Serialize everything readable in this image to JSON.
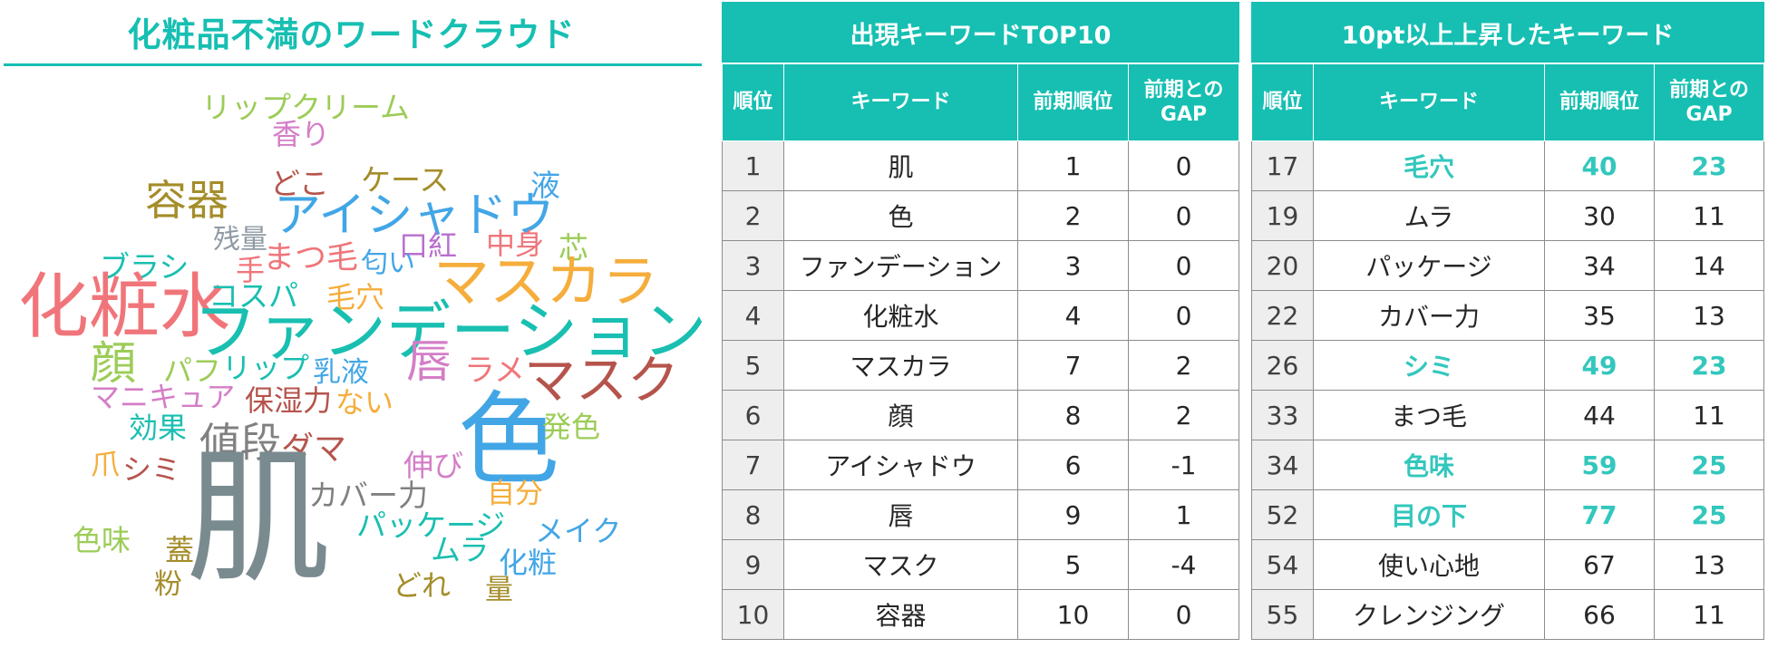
{
  "colors": {
    "accent": "#16bfb2",
    "highlight_text": "#33c7bd",
    "rank_cell_bg": "#eeeeee"
  },
  "word_cloud": {
    "title": "化粧品不満のワードクラウド",
    "words": [
      {
        "text": "リップクリーム",
        "color": "#9ccc57"
      },
      {
        "text": "香り",
        "color": "#d47ec7"
      },
      {
        "text": "容器",
        "color": "#a48d2a"
      },
      {
        "text": "どこ",
        "color": "#b5544c"
      },
      {
        "text": "ケース",
        "color": "#a48d2a"
      },
      {
        "text": "液",
        "color": "#42a6e6"
      },
      {
        "text": "アイシャドウ",
        "color": "#42a6e6"
      },
      {
        "text": "残量",
        "color": "#8f9aa4"
      },
      {
        "text": "口紅",
        "color": "#b86fcf"
      },
      {
        "text": "中身",
        "color": "#f0757a"
      },
      {
        "text": "芯",
        "color": "#9ccc57"
      },
      {
        "text": "ブラシ",
        "color": "#19bfb1"
      },
      {
        "text": "手",
        "color": "#f0757a"
      },
      {
        "text": "まつ毛",
        "color": "#f0757a"
      },
      {
        "text": "匂い",
        "color": "#42a6e6"
      },
      {
        "text": "マスカラ",
        "color": "#f5ad3b"
      },
      {
        "text": "化粧水",
        "color": "#f0757a"
      },
      {
        "text": "コスパ",
        "color": "#19bfb1"
      },
      {
        "text": "毛穴",
        "color": "#f5ad3b"
      },
      {
        "text": "ファンデーション",
        "color": "#19bfb1"
      },
      {
        "text": "顔",
        "color": "#9ccc57"
      },
      {
        "text": "パフ",
        "color": "#9ccc57"
      },
      {
        "text": "リップ",
        "color": "#19bfb1"
      },
      {
        "text": "乳液",
        "color": "#42a6e6"
      },
      {
        "text": "唇",
        "color": "#d47ec7"
      },
      {
        "text": "ラメ",
        "color": "#f0757a"
      },
      {
        "text": "マスク",
        "color": "#b5544c"
      },
      {
        "text": "マニキュア",
        "color": "#d47ec7"
      },
      {
        "text": "保湿力",
        "color": "#b5544c"
      },
      {
        "text": "ない",
        "color": "#f5ad3b"
      },
      {
        "text": "効果",
        "color": "#19bfb1"
      },
      {
        "text": "値段",
        "color": "#808080"
      },
      {
        "text": "ダマ",
        "color": "#b5544c"
      },
      {
        "text": "色",
        "color": "#42a6e6"
      },
      {
        "text": "発色",
        "color": "#9ccc57"
      },
      {
        "text": "爪",
        "color": "#f5ad3b"
      },
      {
        "text": "シミ",
        "color": "#b5544c"
      },
      {
        "text": "伸び",
        "color": "#d47ec7"
      },
      {
        "text": "肌",
        "color": "#7a8b8f"
      },
      {
        "text": "カバー力",
        "color": "#808080"
      },
      {
        "text": "自分",
        "color": "#f5ad3b"
      },
      {
        "text": "パッケージ",
        "color": "#19bfb1"
      },
      {
        "text": "色味",
        "color": "#9ccc57"
      },
      {
        "text": "蓋",
        "color": "#a48d2a"
      },
      {
        "text": "メイク",
        "color": "#42a6e6"
      },
      {
        "text": "ムラ",
        "color": "#19bfb1"
      },
      {
        "text": "化粧",
        "color": "#42a6e6"
      },
      {
        "text": "粉",
        "color": "#a48d2a"
      },
      {
        "text": "どれ",
        "color": "#a48d2a"
      },
      {
        "text": "量",
        "color": "#a48d2a"
      }
    ]
  },
  "top10": {
    "title": "出現キーワードTOP10",
    "headers": [
      "順位",
      "キーワード",
      "前期順位",
      "前期との",
      "GAP"
    ],
    "rows": [
      {
        "rank": "1",
        "keyword": "肌",
        "prev": "1",
        "gap": "0"
      },
      {
        "rank": "2",
        "keyword": "色",
        "prev": "2",
        "gap": "0"
      },
      {
        "rank": "3",
        "keyword": "ファンデーション",
        "prev": "3",
        "gap": "0"
      },
      {
        "rank": "4",
        "keyword": "化粧水",
        "prev": "4",
        "gap": "0"
      },
      {
        "rank": "5",
        "keyword": "マスカラ",
        "prev": "7",
        "gap": "2"
      },
      {
        "rank": "6",
        "keyword": "顔",
        "prev": "8",
        "gap": "2"
      },
      {
        "rank": "7",
        "keyword": "アイシャドウ",
        "prev": "6",
        "gap": "-1"
      },
      {
        "rank": "8",
        "keyword": "唇",
        "prev": "9",
        "gap": "1"
      },
      {
        "rank": "9",
        "keyword": "マスク",
        "prev": "5",
        "gap": "-4"
      },
      {
        "rank": "10",
        "keyword": "容器",
        "prev": "10",
        "gap": "0"
      }
    ]
  },
  "rising": {
    "title": "10pt以上上昇したキーワード",
    "headers": [
      "順位",
      "キーワード",
      "前期順位",
      "前期との",
      "GAP"
    ],
    "rows": [
      {
        "rank": "17",
        "keyword": "毛穴",
        "prev": "40",
        "gap": "23",
        "highlight": true
      },
      {
        "rank": "19",
        "keyword": "ムラ",
        "prev": "30",
        "gap": "11",
        "highlight": false
      },
      {
        "rank": "20",
        "keyword": "パッケージ",
        "prev": "34",
        "gap": "14",
        "highlight": false
      },
      {
        "rank": "22",
        "keyword": "カバー力",
        "prev": "35",
        "gap": "13",
        "highlight": false
      },
      {
        "rank": "26",
        "keyword": "シミ",
        "prev": "49",
        "gap": "23",
        "highlight": true
      },
      {
        "rank": "33",
        "keyword": "まつ毛",
        "prev": "44",
        "gap": "11",
        "highlight": false
      },
      {
        "rank": "34",
        "keyword": "色味",
        "prev": "59",
        "gap": "25",
        "highlight": true
      },
      {
        "rank": "52",
        "keyword": "目の下",
        "prev": "77",
        "gap": "25",
        "highlight": true
      },
      {
        "rank": "54",
        "keyword": "使い心地",
        "prev": "67",
        "gap": "13",
        "highlight": false
      },
      {
        "rank": "55",
        "keyword": "クレンジング",
        "prev": "66",
        "gap": "11",
        "highlight": false
      }
    ]
  }
}
